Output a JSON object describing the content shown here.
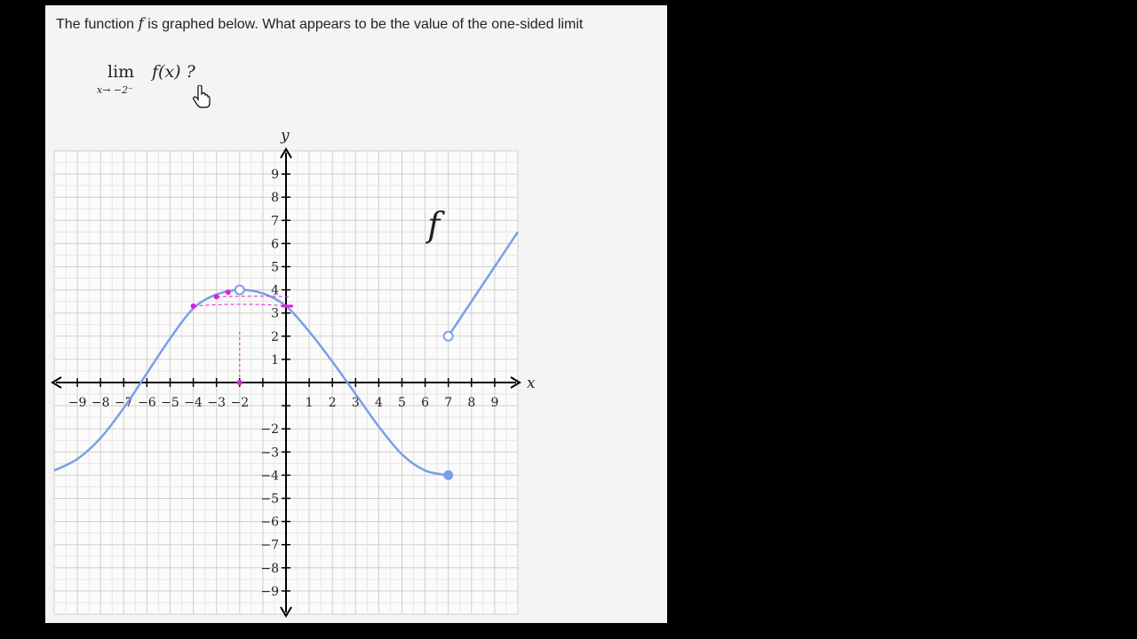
{
  "question": {
    "prefix": "The function",
    "func_symbol": "f",
    "suffix": "is graphed below. What appears to be the value of the one-sided limit"
  },
  "limit": {
    "lim": "lim",
    "subscript": "x→ −2⁻",
    "expression": "f(x) ?"
  },
  "graph": {
    "x_axis_label": "x",
    "y_axis_label": "y",
    "function_label": "f",
    "x_tick_labels": [
      "−9",
      "−8",
      "−7",
      "−6",
      "−5",
      "−4",
      "−3",
      "−2",
      "1",
      "2",
      "3",
      "4",
      "5",
      "6",
      "7",
      "8",
      "9"
    ],
    "y_tick_labels": [
      "9",
      "8",
      "7",
      "6",
      "5",
      "4",
      "3",
      "2",
      "1",
      "−2",
      "−3",
      "−4",
      "−5",
      "−6",
      "−7",
      "−8",
      "−9"
    ]
  },
  "chart_data": {
    "type": "line",
    "xlim": [
      -10,
      10
    ],
    "ylim": [
      -10,
      10
    ],
    "grid": true,
    "curve_color": "#7b9ee8",
    "annotation_color": "#e020d8",
    "segment_left": [
      [
        -10,
        -3.8
      ],
      [
        -9,
        -3.3
      ],
      [
        -8,
        -2.4
      ],
      [
        -7,
        -1.1
      ],
      [
        -6,
        0.4
      ],
      [
        -5,
        1.9
      ],
      [
        -4,
        3.2
      ],
      [
        -3,
        3.8
      ],
      [
        -2,
        4.0
      ],
      [
        -1,
        3.85
      ],
      [
        0,
        3.3
      ],
      [
        1,
        2.2
      ],
      [
        2,
        0.9
      ],
      [
        3,
        -0.5
      ],
      [
        4,
        -1.9
      ],
      [
        5,
        -3.1
      ],
      [
        6,
        -3.8
      ],
      [
        7,
        -4.0
      ]
    ],
    "segment_right": [
      [
        7,
        2
      ],
      [
        10,
        6.5
      ]
    ],
    "open_points": [
      [
        -2,
        4
      ],
      [
        7,
        2
      ]
    ],
    "closed_points": [
      [
        7,
        -4
      ]
    ],
    "annotation_points": [
      [
        -4,
        3.3
      ],
      [
        -3,
        3.7
      ],
      [
        -2.5,
        3.9
      ],
      [
        -2,
        0
      ]
    ]
  }
}
